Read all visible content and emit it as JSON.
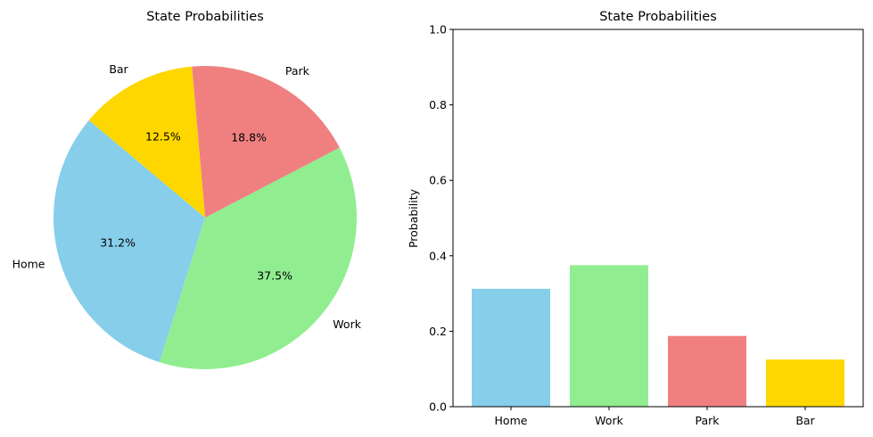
{
  "chart_data": [
    {
      "type": "pie",
      "title": "State Probabilities",
      "categories": [
        "Home",
        "Work",
        "Park",
        "Bar"
      ],
      "values": [
        0.3125,
        0.375,
        0.1875,
        0.125
      ],
      "pct_labels": [
        "31.2%",
        "37.5%",
        "18.8%",
        "12.5%"
      ],
      "colors": [
        "#87CEEB",
        "#90EE90",
        "#F08080",
        "#FFD700"
      ]
    },
    {
      "type": "bar",
      "title": "State Probabilities",
      "categories": [
        "Home",
        "Work",
        "Park",
        "Bar"
      ],
      "values": [
        0.3125,
        0.375,
        0.1875,
        0.125
      ],
      "colors": [
        "#87CEEB",
        "#90EE90",
        "#F08080",
        "#FFD700"
      ],
      "xlabel": "",
      "ylabel": "Probability",
      "ylim": [
        0,
        1
      ],
      "yticks": [
        "0.0",
        "0.2",
        "0.4",
        "0.6",
        "0.8",
        "1.0"
      ],
      "grid": false
    }
  ]
}
